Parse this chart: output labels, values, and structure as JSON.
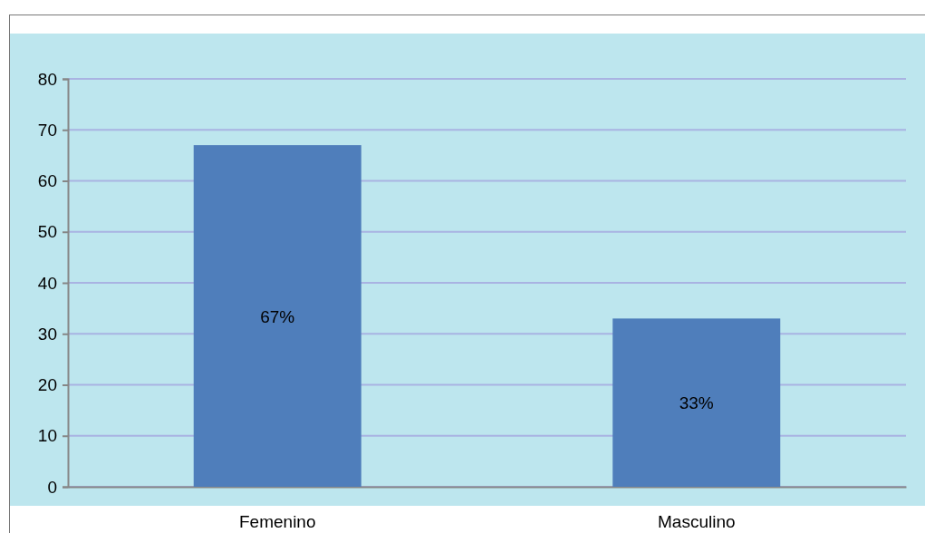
{
  "chart_data": {
    "type": "bar",
    "categories": [
      "Femenino",
      "Masculino"
    ],
    "values": [
      67,
      33
    ],
    "value_labels": [
      "67%",
      "33%"
    ],
    "color": "#4f7ebb",
    "ylim": [
      0,
      80
    ],
    "yticks": [
      0,
      10,
      20,
      30,
      40,
      50,
      60,
      70,
      80
    ],
    "grid": "y"
  }
}
